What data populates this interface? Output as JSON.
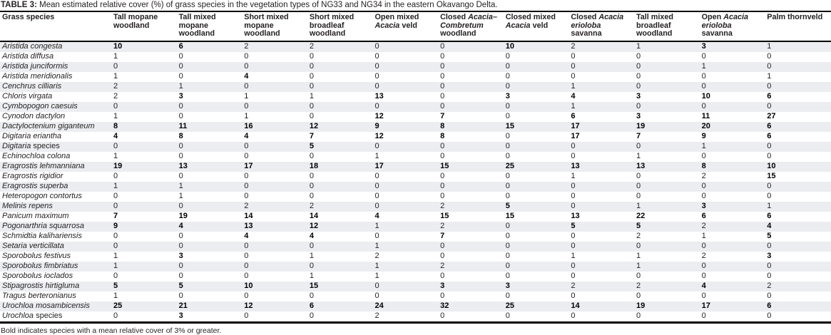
{
  "title": {
    "label": "TABLE 3:",
    "text": "Mean estimated relative cover (%) of grass species in the vegetation types of NG33 and NG34 in the eastern Okavango Delta."
  },
  "footnote": "Bold indicates species with a mean relative cover of 3% or greater.",
  "colors": {
    "stripe": "#ebedf0",
    "text": "#231f20",
    "rule": "#000000"
  },
  "table": {
    "bold_min_value": 3,
    "species_header": "Grass species",
    "columns": [
      {
        "segments": [
          {
            "t": "Tall mopane woodland",
            "i": false
          }
        ]
      },
      {
        "segments": [
          {
            "t": "Tall mixed mopane woodland",
            "i": false
          }
        ]
      },
      {
        "segments": [
          {
            "t": "Short mixed mopane woodland",
            "i": false
          }
        ]
      },
      {
        "segments": [
          {
            "t": "Short mixed broadleaf woodland",
            "i": false
          }
        ]
      },
      {
        "segments": [
          {
            "t": "Open mixed ",
            "i": false
          },
          {
            "t": "Acacia",
            "i": true
          },
          {
            "t": " veld",
            "i": false
          }
        ]
      },
      {
        "segments": [
          {
            "t": "Closed ",
            "i": false
          },
          {
            "t": "Acacia–Combretum",
            "i": true
          },
          {
            "t": " woodland",
            "i": false
          }
        ]
      },
      {
        "segments": [
          {
            "t": "Closed mixed ",
            "i": false
          },
          {
            "t": "Acacia",
            "i": true
          },
          {
            "t": " veld",
            "i": false
          }
        ]
      },
      {
        "segments": [
          {
            "t": "Closed ",
            "i": false
          },
          {
            "t": "Acacia erioloba",
            "i": true
          },
          {
            "t": " savanna",
            "i": false
          }
        ]
      },
      {
        "segments": [
          {
            "t": "Tall mixed broadleaf woodland",
            "i": false
          }
        ]
      },
      {
        "segments": [
          {
            "t": "Open ",
            "i": false
          },
          {
            "t": "Acacia erioloba",
            "i": true
          },
          {
            "t": " savanna",
            "i": false
          }
        ]
      },
      {
        "segments": [
          {
            "t": "Palm thornveld",
            "i": false
          }
        ]
      }
    ],
    "rows": [
      {
        "species": [
          {
            "t": "Aristida congesta",
            "i": true
          }
        ],
        "values": [
          10,
          6,
          2,
          2,
          0,
          0,
          10,
          2,
          1,
          3,
          1
        ]
      },
      {
        "species": [
          {
            "t": "Aristida diffusa",
            "i": true
          }
        ],
        "values": [
          1,
          0,
          0,
          0,
          0,
          0,
          0,
          0,
          0,
          0,
          0
        ]
      },
      {
        "species": [
          {
            "t": "Aristida junciformis",
            "i": true
          }
        ],
        "values": [
          0,
          0,
          0,
          0,
          0,
          0,
          0,
          0,
          0,
          1,
          0
        ]
      },
      {
        "species": [
          {
            "t": "Aristida meridionalis",
            "i": true
          }
        ],
        "values": [
          1,
          0,
          4,
          0,
          0,
          0,
          0,
          0,
          0,
          0,
          1
        ]
      },
      {
        "species": [
          {
            "t": "Cenchrus cilliaris",
            "i": true
          }
        ],
        "values": [
          2,
          1,
          0,
          0,
          0,
          0,
          0,
          1,
          0,
          0,
          0
        ]
      },
      {
        "species": [
          {
            "t": "Chloris virgata",
            "i": true
          }
        ],
        "values": [
          2,
          3,
          1,
          1,
          13,
          0,
          3,
          4,
          3,
          10,
          6
        ]
      },
      {
        "species": [
          {
            "t": "Cymbopogon caesuis",
            "i": true
          }
        ],
        "values": [
          0,
          0,
          0,
          0,
          0,
          0,
          0,
          1,
          0,
          0,
          0
        ]
      },
      {
        "species": [
          {
            "t": "Cynodon dactylon",
            "i": true
          }
        ],
        "values": [
          1,
          0,
          1,
          0,
          12,
          7,
          0,
          6,
          3,
          11,
          27
        ]
      },
      {
        "species": [
          {
            "t": "Dactyloctenium giganteum",
            "i": true
          }
        ],
        "values": [
          8,
          11,
          16,
          12,
          9,
          8,
          15,
          17,
          19,
          20,
          6
        ]
      },
      {
        "species": [
          {
            "t": "Digitaria eriantha",
            "i": true
          }
        ],
        "values": [
          4,
          8,
          4,
          7,
          12,
          8,
          0,
          17,
          7,
          9,
          6
        ]
      },
      {
        "species": [
          {
            "t": "Digitaria",
            "i": true
          },
          {
            "t": " species",
            "i": false
          }
        ],
        "values": [
          0,
          0,
          0,
          5,
          0,
          0,
          0,
          0,
          0,
          1,
          0
        ]
      },
      {
        "species": [
          {
            "t": "Echinochloa colona",
            "i": true
          }
        ],
        "values": [
          1,
          0,
          0,
          0,
          1,
          0,
          0,
          0,
          1,
          0,
          0
        ]
      },
      {
        "species": [
          {
            "t": "Eragrostis lehmanniana",
            "i": true
          }
        ],
        "values": [
          19,
          13,
          17,
          18,
          17,
          15,
          25,
          13,
          13,
          8,
          10
        ]
      },
      {
        "species": [
          {
            "t": "Eragrostis rigidior",
            "i": true
          }
        ],
        "values": [
          0,
          0,
          0,
          0,
          0,
          0,
          0,
          1,
          0,
          2,
          15
        ]
      },
      {
        "species": [
          {
            "t": "Eragrostis superba",
            "i": true
          }
        ],
        "values": [
          1,
          1,
          0,
          0,
          0,
          0,
          0,
          0,
          0,
          0,
          0
        ]
      },
      {
        "species": [
          {
            "t": "Heteropogon contortus",
            "i": true
          }
        ],
        "values": [
          0,
          1,
          0,
          0,
          0,
          0,
          0,
          0,
          0,
          0,
          0
        ]
      },
      {
        "species": [
          {
            "t": "Melinis repens",
            "i": true
          }
        ],
        "values": [
          0,
          0,
          2,
          2,
          0,
          2,
          5,
          0,
          1,
          3,
          1
        ]
      },
      {
        "species": [
          {
            "t": "Panicum maximum",
            "i": true
          }
        ],
        "values": [
          7,
          19,
          14,
          14,
          4,
          15,
          15,
          13,
          22,
          6,
          6
        ]
      },
      {
        "species": [
          {
            "t": "Pogonarthria squarrosa",
            "i": true
          }
        ],
        "values": [
          9,
          4,
          13,
          12,
          1,
          2,
          0,
          5,
          5,
          2,
          4
        ]
      },
      {
        "species": [
          {
            "t": "Schmidtia kalihariensis",
            "i": true
          }
        ],
        "values": [
          0,
          0,
          4,
          4,
          0,
          7,
          0,
          0,
          2,
          1,
          5
        ]
      },
      {
        "species": [
          {
            "t": "Setaria verticillata",
            "i": true
          }
        ],
        "values": [
          0,
          0,
          0,
          0,
          1,
          0,
          0,
          0,
          0,
          0,
          0
        ]
      },
      {
        "species": [
          {
            "t": "Sporobolus festivus",
            "i": true
          }
        ],
        "values": [
          1,
          3,
          0,
          1,
          2,
          0,
          0,
          1,
          1,
          2,
          3
        ]
      },
      {
        "species": [
          {
            "t": "Sporobolus fimbriatus",
            "i": true
          }
        ],
        "values": [
          1,
          0,
          0,
          0,
          1,
          2,
          0,
          0,
          1,
          0,
          0
        ]
      },
      {
        "species": [
          {
            "t": "Sporobolus ioclados",
            "i": true
          }
        ],
        "values": [
          0,
          0,
          0,
          1,
          1,
          0,
          0,
          0,
          0,
          0,
          0
        ]
      },
      {
        "species": [
          {
            "t": "Stipagrostis hirtigluma",
            "i": true
          }
        ],
        "values": [
          5,
          5,
          10,
          15,
          0,
          3,
          3,
          2,
          2,
          4,
          2
        ]
      },
      {
        "species": [
          {
            "t": "Tragus berteronianus",
            "i": true
          }
        ],
        "values": [
          1,
          0,
          0,
          0,
          0,
          0,
          0,
          0,
          0,
          0,
          0
        ]
      },
      {
        "species": [
          {
            "t": "Urochloa mosambicensis",
            "i": true
          }
        ],
        "values": [
          25,
          21,
          12,
          6,
          24,
          32,
          25,
          14,
          19,
          17,
          6
        ]
      },
      {
        "species": [
          {
            "t": "Urochloa",
            "i": true
          },
          {
            "t": " species",
            "i": false
          }
        ],
        "values": [
          0,
          3,
          0,
          0,
          2,
          0,
          0,
          0,
          0,
          0,
          0
        ]
      }
    ]
  }
}
